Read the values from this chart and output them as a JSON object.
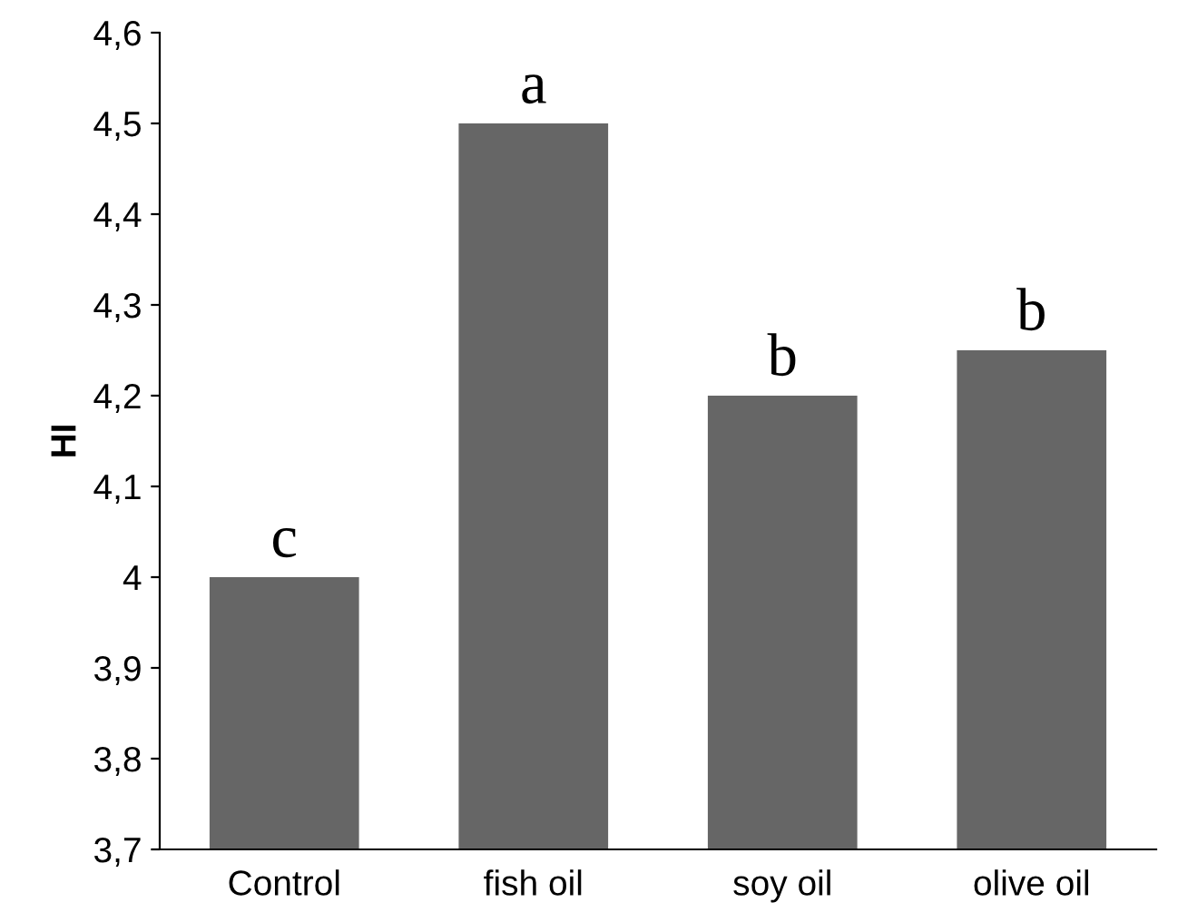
{
  "chart_data": {
    "type": "bar",
    "ylabel": "HI",
    "categories": [
      "Control",
      "fish oil",
      "soy oil",
      "olive oil"
    ],
    "values": [
      4.0,
      4.5,
      4.2,
      4.25
    ],
    "color": "#666666",
    "ylim": [
      3.7,
      4.6
    ],
    "yticks": [
      {
        "value": 3.7,
        "label": "3,7"
      },
      {
        "value": 3.8,
        "label": "3,8"
      },
      {
        "value": 3.9,
        "label": "3,9"
      },
      4,
      {
        "value": 4.1,
        "label": "4,1"
      },
      {
        "value": 4.2,
        "label": "4,2"
      },
      {
        "value": 4.3,
        "label": "4,3"
      },
      {
        "value": 4.4,
        "label": "4,4"
      },
      {
        "value": 4.5,
        "label": "4,5"
      },
      {
        "value": 4.6,
        "label": "4,6"
      }
    ],
    "grid": false,
    "annotations": [
      {
        "text": "c",
        "x": "Control",
        "y": 4.0
      },
      {
        "text": "a",
        "x": "fish oil",
        "y": 4.5
      },
      {
        "text": "b",
        "x": "soy oil",
        "y": 4.2
      },
      {
        "text": "b",
        "x": "olive oil",
        "y": 4.25
      }
    ]
  }
}
